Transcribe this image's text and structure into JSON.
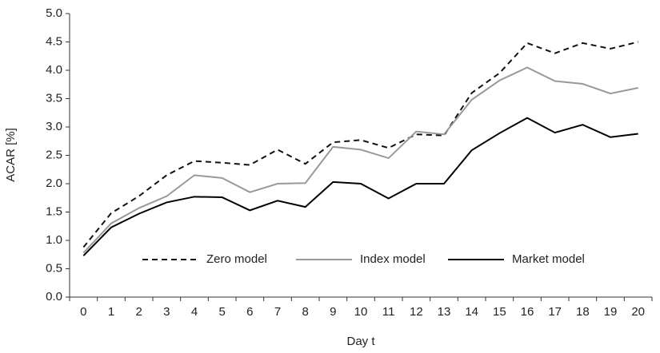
{
  "chart_data": {
    "type": "line",
    "xlabel": "Day t",
    "ylabel": "ACAR [%]",
    "categories": [
      "0",
      "1",
      "2",
      "3",
      "4",
      "5",
      "6",
      "7",
      "8",
      "9",
      "10",
      "11",
      "12",
      "13",
      "14",
      "15",
      "16",
      "17",
      "18",
      "19",
      "20"
    ],
    "series": [
      {
        "name": "Zero model",
        "color": "#111111",
        "dash": "dashed",
        "values": [
          0.88,
          1.48,
          1.78,
          2.15,
          2.4,
          2.37,
          2.33,
          2.6,
          2.35,
          2.73,
          2.77,
          2.63,
          2.87,
          2.85,
          3.6,
          3.95,
          4.48,
          4.3,
          4.48,
          4.38,
          4.5
        ]
      },
      {
        "name": "Index model",
        "color": "#999999",
        "dash": "solid",
        "values": [
          0.78,
          1.3,
          1.57,
          1.78,
          2.15,
          2.1,
          1.85,
          2.0,
          2.01,
          2.65,
          2.6,
          2.45,
          2.92,
          2.87,
          3.48,
          3.82,
          4.05,
          3.81,
          3.76,
          3.59,
          3.69
        ]
      },
      {
        "name": "Market model",
        "color": "#000000",
        "dash": "solid",
        "values": [
          0.73,
          1.23,
          1.47,
          1.67,
          1.77,
          1.76,
          1.53,
          1.7,
          1.59,
          2.03,
          2.0,
          1.74,
          2.0,
          2.0,
          2.59,
          2.89,
          3.16,
          2.9,
          3.04,
          2.82,
          2.88
        ]
      }
    ],
    "ylim": [
      0,
      5
    ],
    "yticks": [
      {
        "value": 0,
        "label": "0.0"
      },
      0.5,
      {
        "value": 1,
        "label": "1.0"
      },
      1.5,
      {
        "value": 2,
        "label": "2.0"
      },
      2.5,
      {
        "value": 3,
        "label": "3.0"
      },
      3.5,
      {
        "value": 4,
        "label": "4.0"
      },
      4.5,
      {
        "value": 5,
        "label": "5.0"
      }
    ],
    "grid": false,
    "legend": "lower center"
  }
}
